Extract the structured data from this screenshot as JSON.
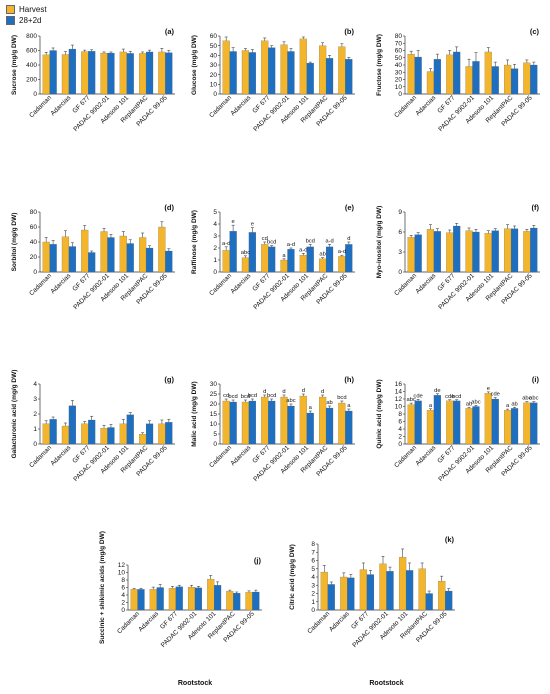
{
  "legend": [
    {
      "label": "Harvest",
      "color": "#F2B52C"
    },
    {
      "label": "28+2d",
      "color": "#1F6FC1"
    }
  ],
  "colors": {
    "axis": "#333333",
    "error_bar": "#444444",
    "text": "#111111"
  },
  "chart_data": [
    {
      "type": "bar",
      "panel": "(a)",
      "ylabel": "Sucrose (mg/g DW)",
      "xlabel": "",
      "ylim": [
        0,
        800
      ],
      "yticks": [
        0,
        200,
        400,
        600,
        800
      ],
      "categories": [
        "Cadaman",
        "Adarcias",
        "GF 677",
        "PADAC 9902-01",
        "Adesoto 101",
        "ReplantPAC",
        "PADAC 99-05"
      ],
      "series": [
        {
          "name": "Harvest",
          "values": [
            540,
            545,
            585,
            565,
            580,
            560,
            580
          ],
          "errors": [
            35,
            40,
            20,
            15,
            40,
            20,
            50
          ]
        },
        {
          "name": "28+2d",
          "values": [
            600,
            620,
            590,
            565,
            560,
            580,
            570
          ],
          "errors": [
            35,
            55,
            20,
            15,
            30,
            25,
            30
          ]
        }
      ],
      "letters": []
    },
    {
      "type": "bar",
      "panel": "(b)",
      "ylabel": "Glucose (mg/g DW)",
      "xlabel": "",
      "ylim": [
        0,
        60
      ],
      "yticks": [
        0,
        10,
        20,
        30,
        40,
        50,
        60
      ],
      "categories": [
        "Cadaman",
        "Adarcias",
        "GF 677",
        "PADAC 9902-01",
        "Adesoto 101",
        "ReplantPAC",
        "PADAC 99-05"
      ],
      "series": [
        {
          "name": "Harvest",
          "values": [
            55,
            45,
            55,
            51,
            57,
            50,
            49
          ],
          "errors": [
            4,
            2,
            3,
            3,
            2,
            3,
            3
          ]
        },
        {
          "name": "28+2d",
          "values": [
            44,
            43,
            48,
            44,
            32,
            37,
            36
          ],
          "errors": [
            4,
            3,
            2,
            3,
            1,
            3,
            2
          ]
        }
      ],
      "letters": []
    },
    {
      "type": "bar",
      "panel": "(c)",
      "ylabel": "Fructose (mg/g DW)",
      "xlabel": "",
      "ylim": [
        0,
        80
      ],
      "yticks": [
        0,
        10,
        20,
        30,
        40,
        50,
        60,
        70,
        80
      ],
      "categories": [
        "Cadaman",
        "Adarcias",
        "GF 677",
        "PADAC 9902-01",
        "Adesoto 101",
        "ReplantPAC",
        "PADAC 99-05"
      ],
      "series": [
        {
          "name": "Harvest",
          "values": [
            55,
            31,
            54,
            38,
            58,
            40,
            43
          ],
          "errors": [
            4,
            4,
            6,
            10,
            6,
            7,
            4
          ]
        },
        {
          "name": "28+2d",
          "values": [
            51,
            48,
            58,
            45,
            38,
            35,
            40
          ],
          "errors": [
            9,
            7,
            7,
            12,
            6,
            6,
            4
          ]
        }
      ],
      "letters": []
    },
    {
      "type": "bar",
      "panel": "(d)",
      "ylabel": "Sorbitol (mg/g DW)",
      "xlabel": "",
      "ylim": [
        0,
        80
      ],
      "yticks": [
        0,
        20,
        40,
        60,
        80
      ],
      "categories": [
        "Cadaman",
        "Adarcias",
        "GF 677",
        "PADAC 9902-01",
        "Adesoto 101",
        "ReplantPAC",
        "PADAC 99-05"
      ],
      "series": [
        {
          "name": "Harvest",
          "values": [
            40,
            47,
            56,
            54,
            48,
            46,
            60
          ],
          "errors": [
            6,
            8,
            6,
            4,
            6,
            6,
            7
          ]
        },
        {
          "name": "28+2d",
          "values": [
            37,
            34,
            26,
            46,
            38,
            32,
            28
          ],
          "errors": [
            5,
            5,
            2,
            4,
            5,
            3,
            3
          ]
        }
      ],
      "letters": []
    },
    {
      "type": "bar",
      "panel": "(e)",
      "ylabel": "Raffinose (mg/g DW)",
      "xlabel": "",
      "ylim": [
        0,
        5
      ],
      "yticks": [
        0,
        1,
        2,
        3,
        4,
        5
      ],
      "categories": [
        "Cadaman",
        "Adarcias",
        "GF 677",
        "PADAC 9902-01",
        "Adesoto 101",
        "ReplantPAC",
        "PADAC 99-05"
      ],
      "series": [
        {
          "name": "Harvest",
          "values": [
            1.8,
            1.2,
            2.3,
            1.0,
            1.4,
            1.1,
            1.3
          ],
          "errors": [
            0.3,
            0.15,
            0.2,
            0.1,
            0.15,
            0.1,
            0.1
          ]
        },
        {
          "name": "28+2d",
          "values": [
            3.4,
            3.3,
            2.1,
            1.9,
            2.1,
            2.1,
            2.3
          ],
          "errors": [
            0.5,
            0.4,
            0.1,
            0.1,
            0.2,
            0.2,
            0.2
          ]
        }
      ],
      "letters": [
        {
          "group": 0,
          "series": 0,
          "text": "a-d"
        },
        {
          "group": 0,
          "series": 1,
          "text": "e"
        },
        {
          "group": 1,
          "series": 0,
          "text": "abc"
        },
        {
          "group": 1,
          "series": 1,
          "text": "e"
        },
        {
          "group": 2,
          "series": 0,
          "text": "cd"
        },
        {
          "group": 2,
          "series": 1,
          "text": "bcd"
        },
        {
          "group": 3,
          "series": 0,
          "text": "a"
        },
        {
          "group": 3,
          "series": 1,
          "text": "a-d"
        },
        {
          "group": 4,
          "series": 0,
          "text": "a-d"
        },
        {
          "group": 4,
          "series": 1,
          "text": "bcd"
        },
        {
          "group": 5,
          "series": 0,
          "text": "ab"
        },
        {
          "group": 5,
          "series": 1,
          "text": "a-d"
        },
        {
          "group": 6,
          "series": 0,
          "text": "a-d"
        },
        {
          "group": 6,
          "series": 1,
          "text": "d"
        }
      ]
    },
    {
      "type": "bar",
      "panel": "(f)",
      "ylabel": "Myo-inositol (mg/g DW)",
      "xlabel": "",
      "ylim": [
        0,
        9
      ],
      "yticks": [
        0,
        3,
        6,
        9
      ],
      "categories": [
        "Cadaman",
        "Adarcias",
        "GF 677",
        "PADAC 9902-01",
        "Adesoto 101",
        "ReplantPAC",
        "PADAC 99-05"
      ],
      "series": [
        {
          "name": "Harvest",
          "values": [
            5.2,
            6.4,
            5.9,
            6.2,
            5.8,
            6.5,
            6.1
          ],
          "errors": [
            0.3,
            0.7,
            0.4,
            0.4,
            0.4,
            0.6,
            0.3
          ]
        },
        {
          "name": "28+2d",
          "values": [
            5.6,
            6.1,
            6.9,
            6.0,
            6.2,
            6.5,
            6.6
          ],
          "errors": [
            0.3,
            0.4,
            0.4,
            0.4,
            0.3,
            0.4,
            0.4
          ]
        }
      ],
      "letters": []
    },
    {
      "type": "bar",
      "panel": "(g)",
      "ylabel": "Galacturonic acid (mg/g DW)",
      "xlabel": "",
      "ylim": [
        0,
        4
      ],
      "yticks": [
        0,
        1,
        2,
        3,
        4
      ],
      "categories": [
        "Cadaman",
        "Adarcias",
        "GF 677",
        "PADAC 9902-01",
        "Adesoto 101",
        "ReplantPAC",
        "PADAC 99-05"
      ],
      "series": [
        {
          "name": "Harvest",
          "values": [
            1.35,
            1.2,
            1.35,
            1.05,
            1.35,
            0.65,
            1.35
          ],
          "errors": [
            0.2,
            0.2,
            0.15,
            0.2,
            0.3,
            0.1,
            0.25
          ]
        },
        {
          "name": "28+2d",
          "values": [
            1.65,
            2.55,
            1.6,
            1.1,
            1.95,
            1.35,
            1.45
          ],
          "errors": [
            0.15,
            0.35,
            0.25,
            0.2,
            0.15,
            0.2,
            0.2
          ]
        }
      ],
      "letters": []
    },
    {
      "type": "bar",
      "panel": "(h)",
      "ylabel": "Malic acid (mg/g DW)",
      "xlabel": "",
      "ylim": [
        0,
        30
      ],
      "yticks": [
        0,
        5,
        10,
        15,
        20,
        25,
        30
      ],
      "categories": [
        "Cadaman",
        "Adarcias",
        "GF 677",
        "PADAC 9902-01",
        "Adesoto 101",
        "ReplantPAC",
        "PADAC 99-05"
      ],
      "series": [
        {
          "name": "Harvest",
          "values": [
            21.5,
            21,
            23.5,
            23.5,
            24,
            23.5,
            20.5
          ],
          "errors": [
            1,
            1,
            1,
            1,
            1,
            1,
            1
          ]
        },
        {
          "name": "28+2d",
          "values": [
            21,
            21.5,
            21.5,
            19,
            15.5,
            18,
            16.5
          ],
          "errors": [
            1,
            1,
            1,
            1,
            1,
            1,
            1
          ]
        }
      ],
      "letters": [
        {
          "group": 0,
          "series": 0,
          "text": "cd"
        },
        {
          "group": 0,
          "series": 1,
          "text": "bcd"
        },
        {
          "group": 1,
          "series": 0,
          "text": "bcd"
        },
        {
          "group": 1,
          "series": 1,
          "text": "bcd"
        },
        {
          "group": 2,
          "series": 0,
          "text": "d"
        },
        {
          "group": 2,
          "series": 1,
          "text": "bcd"
        },
        {
          "group": 3,
          "series": 0,
          "text": "d"
        },
        {
          "group": 3,
          "series": 1,
          "text": "abc"
        },
        {
          "group": 4,
          "series": 0,
          "text": "d"
        },
        {
          "group": 4,
          "series": 1,
          "text": "a"
        },
        {
          "group": 5,
          "series": 0,
          "text": "d"
        },
        {
          "group": 5,
          "series": 1,
          "text": "ab"
        },
        {
          "group": 6,
          "series": 0,
          "text": "bcd"
        },
        {
          "group": 6,
          "series": 1,
          "text": "a"
        }
      ]
    },
    {
      "type": "bar",
      "panel": "(i)",
      "ylabel": "Quinic acid (mg/g DW)",
      "xlabel": "",
      "ylim": [
        0,
        16
      ],
      "yticks": [
        0,
        2,
        4,
        6,
        8,
        10,
        12,
        14,
        16
      ],
      "categories": [
        "Cadaman",
        "Adarcias",
        "GF 677",
        "PADAC 9902-01",
        "Adesoto 101",
        "ReplantPAC",
        "PADAC 99-05"
      ],
      "series": [
        {
          "name": "Harvest",
          "values": [
            10.5,
            9,
            11.5,
            9.5,
            13.5,
            9,
            11
          ],
          "errors": [
            0.4,
            0.4,
            0.3,
            0.3,
            0.4,
            0.3,
            0.3
          ]
        },
        {
          "name": "28+2d",
          "values": [
            11.5,
            13,
            11.5,
            10,
            12,
            9.5,
            11
          ],
          "errors": [
            0.4,
            0.4,
            0.3,
            0.3,
            0.4,
            0.3,
            0.3
          ]
        }
      ],
      "letters": [
        {
          "group": 0,
          "series": 0,
          "text": "abc"
        },
        {
          "group": 0,
          "series": 1,
          "text": "cde"
        },
        {
          "group": 1,
          "series": 0,
          "text": "a"
        },
        {
          "group": 1,
          "series": 1,
          "text": "de"
        },
        {
          "group": 2,
          "series": 0,
          "text": "cde"
        },
        {
          "group": 2,
          "series": 1,
          "text": "bcd"
        },
        {
          "group": 3,
          "series": 0,
          "text": "ab"
        },
        {
          "group": 3,
          "series": 1,
          "text": "abc"
        },
        {
          "group": 4,
          "series": 0,
          "text": "e"
        },
        {
          "group": 4,
          "series": 1,
          "text": "cde"
        },
        {
          "group": 5,
          "series": 0,
          "text": "a"
        },
        {
          "group": 5,
          "series": 1,
          "text": "ab"
        },
        {
          "group": 6,
          "series": 0,
          "text": "abc"
        },
        {
          "group": 6,
          "series": 1,
          "text": "abc"
        }
      ]
    },
    {
      "type": "bar",
      "panel": "(j)",
      "ylabel": "Succinic + shikimic acids (mg/g DW)",
      "xlabel": "Rootstock",
      "ylim": [
        0,
        12
      ],
      "yticks": [
        0,
        2,
        4,
        6,
        8,
        10,
        12
      ],
      "categories": [
        "Cadaman",
        "Adarcias",
        "GF 677",
        "PADAC 9902-01",
        "Adesoto 101",
        "ReplantPAC",
        "PADAC 99-05"
      ],
      "series": [
        {
          "name": "Harvest",
          "values": [
            5.5,
            5.5,
            5.8,
            6.1,
            8.2,
            5.0,
            4.7
          ],
          "errors": [
            0.3,
            0.6,
            0.5,
            0.5,
            1.0,
            0.3,
            0.4
          ]
        },
        {
          "name": "28+2d",
          "values": [
            5.5,
            6.0,
            6.2,
            5.9,
            6.6,
            4.5,
            4.8
          ],
          "errors": [
            0.3,
            0.8,
            0.4,
            0.4,
            0.9,
            0.3,
            0.5
          ]
        }
      ],
      "letters": []
    },
    {
      "type": "bar",
      "panel": "(k)",
      "ylabel": "Citric acid (mg/g DW)",
      "xlabel": "Rootstock",
      "ylim": [
        0,
        8
      ],
      "yticks": [
        0,
        1,
        2,
        3,
        4,
        5,
        6,
        7,
        8
      ],
      "categories": [
        "Cadaman",
        "Adarcias",
        "GF 677",
        "PADAC 9902-01",
        "Adesoto 101",
        "ReplantPAC",
        "PADAC 99-05"
      ],
      "series": [
        {
          "name": "Harvest",
          "values": [
            4.6,
            4.0,
            4.9,
            5.6,
            6.4,
            5.0,
            3.5
          ],
          "errors": [
            0.8,
            0.5,
            0.8,
            0.9,
            1.0,
            0.7,
            0.6
          ]
        },
        {
          "name": "28+2d",
          "values": [
            3.1,
            3.9,
            4.3,
            4.7,
            4.8,
            2.0,
            2.3
          ],
          "errors": [
            0.3,
            0.4,
            0.5,
            0.5,
            0.9,
            0.3,
            0.3
          ]
        }
      ],
      "letters": []
    }
  ]
}
